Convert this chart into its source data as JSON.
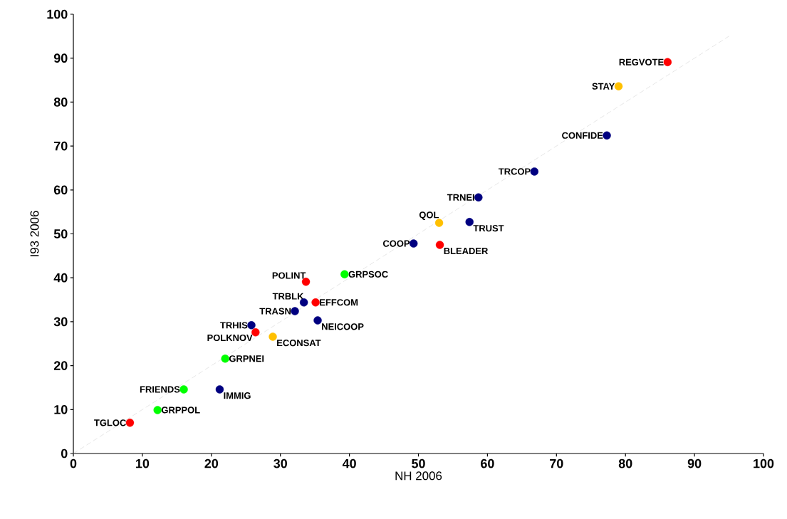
{
  "chart_data": {
    "type": "scatter",
    "xlabel": "NH 2006",
    "ylabel": "I93 2006",
    "xlim": [
      0,
      100
    ],
    "ylim": [
      0,
      100
    ],
    "xticks": [
      0,
      10,
      20,
      30,
      40,
      50,
      60,
      70,
      80,
      90,
      100
    ],
    "yticks": [
      0,
      10,
      20,
      30,
      40,
      50,
      60,
      70,
      80,
      90,
      100
    ],
    "grid": false,
    "series": [
      {
        "type": "line",
        "line_style": "dashed",
        "marker": "none",
        "color": "#c0c0c0",
        "x": [
          0,
          95
        ],
        "values": [
          0,
          95
        ]
      },
      {
        "marker": "circle",
        "color": "#ff0000",
        "x": [
          86.1,
          53.1,
          33.7,
          35.1,
          26.4,
          8.2
        ],
        "values": [
          89.1,
          47.5,
          39.1,
          34.4,
          27.6,
          7.0
        ]
      },
      {
        "marker": "circle",
        "color": "#ffc000",
        "x": [
          79.0,
          53.0,
          28.9
        ],
        "values": [
          83.6,
          52.5,
          26.6
        ]
      },
      {
        "marker": "circle",
        "color": "#000080",
        "x": [
          77.3,
          66.8,
          58.7,
          57.4,
          49.3,
          33.4,
          32.1,
          35.4,
          25.8,
          21.2
        ],
        "values": [
          72.4,
          64.2,
          58.3,
          52.7,
          47.8,
          34.4,
          32.4,
          30.3,
          29.2,
          14.6
        ]
      },
      {
        "marker": "circle",
        "color": "#00ff00",
        "x": [
          39.3,
          22.0,
          16.0,
          12.2
        ],
        "values": [
          40.8,
          21.6,
          14.6,
          9.9
        ]
      }
    ],
    "annotations": [
      {
        "text": "REGVOTE",
        "x": 86.1,
        "y": 89.1
      },
      {
        "text": "STAY",
        "x": 79.0,
        "y": 83.6
      },
      {
        "text": "CONFIDE",
        "x": 77.3,
        "y": 72.4
      },
      {
        "text": "TRCOP",
        "x": 66.8,
        "y": 64.2
      },
      {
        "text": "TRNEI",
        "x": 58.7,
        "y": 58.3
      },
      {
        "text": "QOL",
        "x": 53.0,
        "y": 52.5
      },
      {
        "text": "TRUST",
        "x": 57.4,
        "y": 52.7
      },
      {
        "text": "COOP",
        "x": 49.3,
        "y": 47.8
      },
      {
        "text": "BLEADER",
        "x": 53.1,
        "y": 47.5
      },
      {
        "text": "POLINT",
        "x": 33.7,
        "y": 39.1
      },
      {
        "text": "GRPSOC",
        "x": 39.3,
        "y": 40.8
      },
      {
        "text": "TRBLK",
        "x": 33.4,
        "y": 34.4
      },
      {
        "text": "EFFCOM",
        "x": 35.1,
        "y": 34.4
      },
      {
        "text": "TRASN",
        "x": 32.1,
        "y": 32.4
      },
      {
        "text": "NEICOOP",
        "x": 35.4,
        "y": 30.3
      },
      {
        "text": "TRHIS",
        "x": 25.8,
        "y": 29.2
      },
      {
        "text": "POLKNOV",
        "x": 26.4,
        "y": 27.6
      },
      {
        "text": "ECONSAT",
        "x": 28.9,
        "y": 26.6
      },
      {
        "text": "GRPNEI",
        "x": 22.0,
        "y": 21.6
      },
      {
        "text": "FRIENDS",
        "x": 16.0,
        "y": 14.6
      },
      {
        "text": "IMMIG",
        "x": 21.2,
        "y": 14.6
      },
      {
        "text": "GRPPOL",
        "x": 12.2,
        "y": 9.9
      },
      {
        "text": "TGLOC",
        "x": 8.2,
        "y": 7.0
      }
    ]
  }
}
